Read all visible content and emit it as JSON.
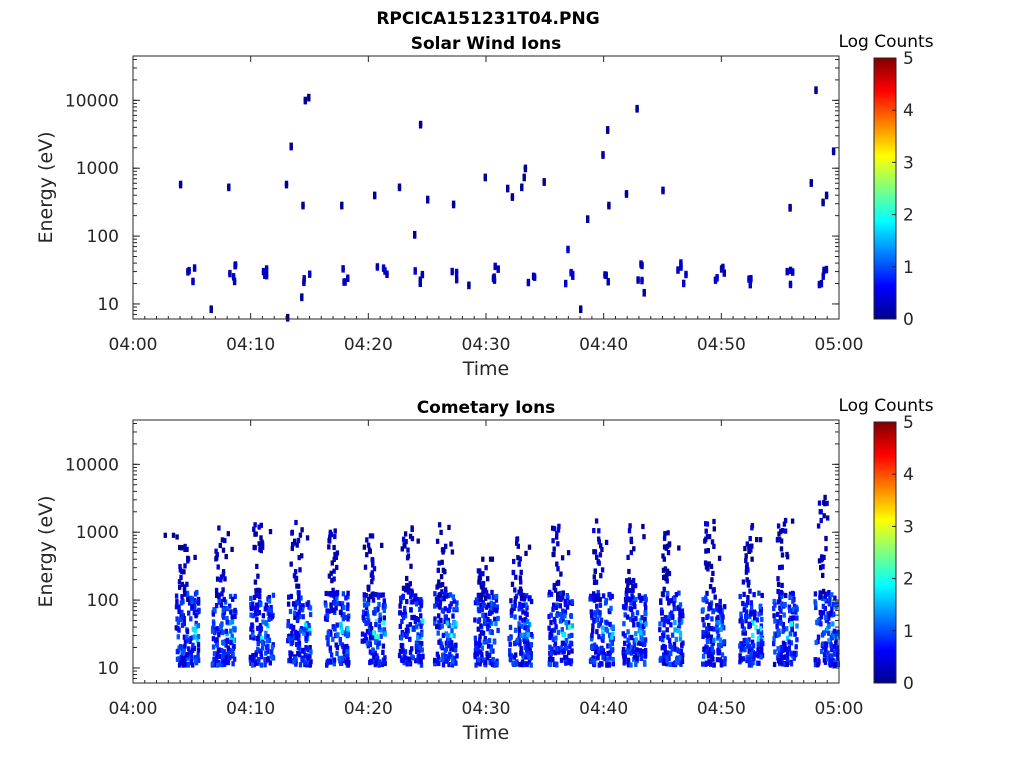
{
  "figure": {
    "title": "RPCICA151231T04.PNG"
  },
  "chart_data": [
    {
      "type": "heatmap",
      "title": "Solar Wind Ions",
      "xlabel": "Time",
      "ylabel": "Energy (eV)",
      "x_ticks": [
        "04:00",
        "04:10",
        "04:20",
        "04:30",
        "04:40",
        "04:50",
        "05:00"
      ],
      "x_range_minutes": [
        0,
        60
      ],
      "y_scale": "log",
      "y_ticks": [
        "10",
        "100",
        "1000",
        "10000"
      ],
      "y_range": [
        6,
        45000
      ],
      "colorbar": {
        "label": "Log Counts",
        "range": [
          0,
          5
        ],
        "ticks": [
          "0",
          "1",
          "2",
          "3",
          "4",
          "5"
        ],
        "colormap": "jet"
      },
      "clusters": [
        {
          "t": 4.8,
          "e": [
            18,
            40
          ],
          "v": 0.2
        },
        {
          "t": 8.2,
          "e": [
            18,
            40
          ],
          "v": 0.2
        },
        {
          "t": 11.3,
          "e": [
            18,
            40
          ],
          "v": 0.2
        },
        {
          "t": 14.6,
          "e": [
            18,
            40
          ],
          "v": 0.2
        },
        {
          "t": 17.7,
          "e": [
            20,
            40
          ],
          "v": 0.2
        },
        {
          "t": 21.0,
          "e": [
            20,
            35
          ],
          "v": 0.25
        },
        {
          "t": 24.0,
          "e": [
            14,
            40
          ],
          "v": 0.2
        },
        {
          "t": 27.2,
          "e": [
            20,
            40
          ],
          "v": 0.2
        },
        {
          "t": 30.6,
          "e": [
            20,
            35
          ],
          "v": 0.2
        },
        {
          "t": 33.8,
          "e": [
            18,
            40
          ],
          "v": 0.2
        },
        {
          "t": 36.8,
          "e": [
            16,
            110
          ],
          "v": 0.3
        },
        {
          "t": 40.0,
          "e": [
            20,
            40
          ],
          "v": 0.2
        },
        {
          "t": 43.2,
          "e": [
            14,
            40
          ],
          "v": 0.2
        },
        {
          "t": 46.6,
          "e": [
            18,
            40
          ],
          "v": 0.2
        },
        {
          "t": 49.7,
          "e": [
            18,
            40
          ],
          "v": 0.2
        },
        {
          "t": 52.6,
          "e": [
            18,
            35
          ],
          "v": 0.2
        },
        {
          "t": 55.8,
          "e": [
            18,
            40
          ],
          "v": 0.2
        },
        {
          "t": 58.6,
          "e": [
            16,
            40
          ],
          "v": 0.2
        }
      ],
      "points": [
        {
          "t": 3.9,
          "e": 550,
          "v": 0.1
        },
        {
          "t": 6.5,
          "e": 8,
          "v": 0.1
        },
        {
          "t": 8.0,
          "e": 500,
          "v": 0.1
        },
        {
          "t": 12.9,
          "e": 550,
          "v": 0.1
        },
        {
          "t": 13.3,
          "e": 2000,
          "v": 0.1
        },
        {
          "t": 14.3,
          "e": 270,
          "v": 0.1
        },
        {
          "t": 14.5,
          "e": 9500,
          "v": 0.1
        },
        {
          "t": 14.8,
          "e": 10500,
          "v": 0.1
        },
        {
          "t": 14.2,
          "e": 12,
          "v": 0.1
        },
        {
          "t": 17.6,
          "e": 270,
          "v": 0.1
        },
        {
          "t": 20.4,
          "e": 380,
          "v": 0.1
        },
        {
          "t": 22.5,
          "e": 500,
          "v": 0.1
        },
        {
          "t": 23.8,
          "e": 100,
          "v": 0.1
        },
        {
          "t": 24.3,
          "e": 4200,
          "v": 0.1
        },
        {
          "t": 24.9,
          "e": 330,
          "v": 0.1
        },
        {
          "t": 27.1,
          "e": 280,
          "v": 0.1
        },
        {
          "t": 28.4,
          "e": 18,
          "v": 0.1
        },
        {
          "t": 29.8,
          "e": 700,
          "v": 0.1
        },
        {
          "t": 31.7,
          "e": 480,
          "v": 0.1
        },
        {
          "t": 32.1,
          "e": 360,
          "v": 0.1
        },
        {
          "t": 32.9,
          "e": 500,
          "v": 0.1
        },
        {
          "t": 33.2,
          "e": 950,
          "v": 0.1
        },
        {
          "t": 33.1,
          "e": 700,
          "v": 0.1
        },
        {
          "t": 34.8,
          "e": 600,
          "v": 0.1
        },
        {
          "t": 37.9,
          "e": 8,
          "v": 0.1
        },
        {
          "t": 38.5,
          "e": 170,
          "v": 0.1
        },
        {
          "t": 39.8,
          "e": 1500,
          "v": 0.1
        },
        {
          "t": 40.2,
          "e": 3500,
          "v": 0.1
        },
        {
          "t": 40.3,
          "e": 270,
          "v": 0.1
        },
        {
          "t": 41.8,
          "e": 400,
          "v": 0.1
        },
        {
          "t": 42.7,
          "e": 7200,
          "v": 0.1
        },
        {
          "t": 43.3,
          "e": 14,
          "v": 0.1
        },
        {
          "t": 44.9,
          "e": 450,
          "v": 0.1
        },
        {
          "t": 55.7,
          "e": 250,
          "v": 0.1
        },
        {
          "t": 57.5,
          "e": 580,
          "v": 0.1
        },
        {
          "t": 57.9,
          "e": 13500,
          "v": 0.1
        },
        {
          "t": 58.5,
          "e": 300,
          "v": 0.1
        },
        {
          "t": 58.8,
          "e": 380,
          "v": 0.1
        },
        {
          "t": 59.4,
          "e": 1700,
          "v": 0.1
        },
        {
          "t": 13.0,
          "e": 6,
          "v": 0.1
        }
      ]
    },
    {
      "type": "heatmap",
      "title": "Cometary Ions",
      "xlabel": "Time",
      "ylabel": "Energy (eV)",
      "x_ticks": [
        "04:00",
        "04:10",
        "04:20",
        "04:30",
        "04:40",
        "04:50",
        "05:00"
      ],
      "x_range_minutes": [
        0,
        60
      ],
      "y_scale": "log",
      "y_ticks": [
        "10",
        "100",
        "1000",
        "10000"
      ],
      "y_range": [
        6,
        45000
      ],
      "colorbar": {
        "label": "Log Counts",
        "range": [
          0,
          5
        ],
        "ticks": [
          "0",
          "1",
          "2",
          "3",
          "4",
          "5"
        ],
        "colormap": "jet"
      },
      "bursts": [
        {
          "t": 4.5,
          "top": 700,
          "peak": 1.8
        },
        {
          "t": 7.6,
          "top": 1500,
          "peak": 2.0
        },
        {
          "t": 10.8,
          "top": 1300,
          "peak": 2.1
        },
        {
          "t": 14.0,
          "top": 1400,
          "peak": 1.9
        },
        {
          "t": 17.2,
          "top": 1200,
          "peak": 2.0
        },
        {
          "t": 20.3,
          "top": 1000,
          "peak": 2.2
        },
        {
          "t": 23.5,
          "top": 1300,
          "peak": 1.9
        },
        {
          "t": 26.4,
          "top": 1300,
          "peak": 2.0
        },
        {
          "t": 29.9,
          "top": 400,
          "peak": 1.5
        },
        {
          "t": 32.8,
          "top": 800,
          "peak": 1.7
        },
        {
          "t": 36.2,
          "top": 1500,
          "peak": 2.2
        },
        {
          "t": 39.7,
          "top": 1500,
          "peak": 1.8
        },
        {
          "t": 42.5,
          "top": 1500,
          "peak": 1.7
        },
        {
          "t": 45.6,
          "top": 1200,
          "peak": 1.8
        },
        {
          "t": 49.2,
          "top": 1500,
          "peak": 1.9
        },
        {
          "t": 52.4,
          "top": 1300,
          "peak": 2.2
        },
        {
          "t": 55.3,
          "top": 1500,
          "peak": 2.0
        },
        {
          "t": 58.8,
          "top": 3500,
          "peak": 1.6
        }
      ]
    }
  ]
}
